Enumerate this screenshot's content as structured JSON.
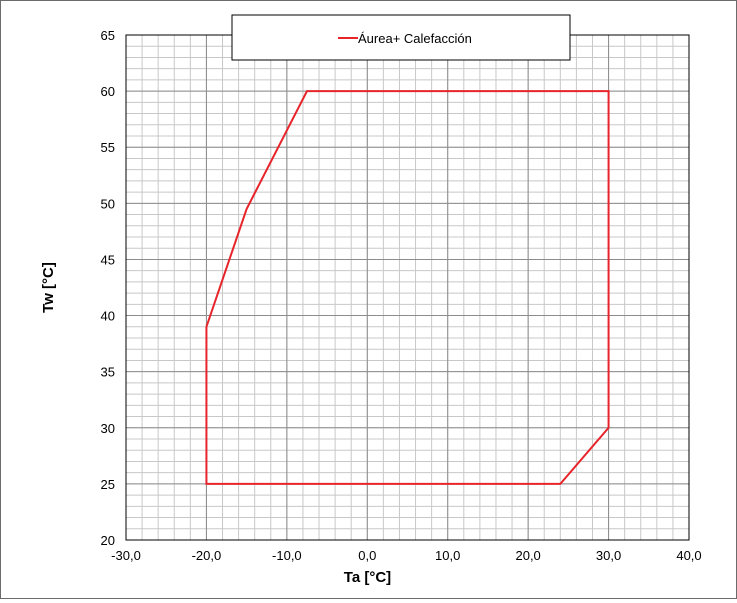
{
  "chart_data": {
    "type": "line",
    "title": "",
    "xlabel": "Ta [°C]",
    "ylabel": "Tw [°C]",
    "xlim": [
      -30,
      40
    ],
    "ylim": [
      20,
      65
    ],
    "x_ticks": [
      "-30,0",
      "-20,0",
      "-10,0",
      "0,0",
      "10,0",
      "20,0",
      "30,0",
      "40,0"
    ],
    "y_ticks": [
      "20",
      "25",
      "30",
      "35",
      "40",
      "45",
      "50",
      "55",
      "60",
      "65"
    ],
    "minor_grid_x": 2,
    "minor_grid_y": 1,
    "grid": true,
    "legend_position": "top-center",
    "series": [
      {
        "name": "Áurea+ Calefacción",
        "color": "#e8242b",
        "x": [
          -20,
          -20,
          24,
          30,
          30,
          -7.5,
          -15,
          -20
        ],
        "y": [
          39,
          25,
          25,
          30,
          60,
          60,
          49.5,
          39
        ]
      }
    ]
  }
}
